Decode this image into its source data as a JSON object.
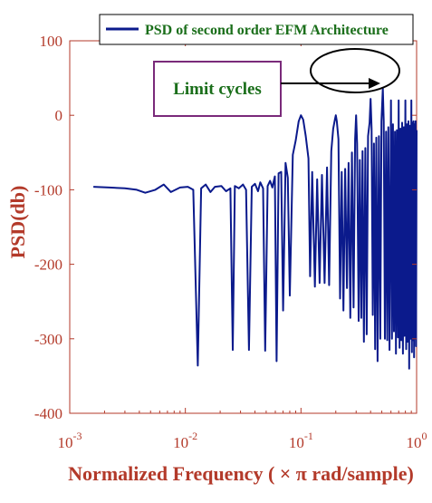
{
  "chart_data": {
    "type": "line",
    "xscale": "log",
    "xlabel": "Normalized Frequency ( × π rad/sample)",
    "ylabel": "PSD(db)",
    "xlim": [
      0.001,
      1
    ],
    "ylim": [
      -400,
      100
    ],
    "x_tick_labels": [
      {
        "base": "10",
        "exp": "-3"
      },
      {
        "base": "10",
        "exp": "-2"
      },
      {
        "base": "10",
        "exp": "-1"
      },
      {
        "base": "10",
        "exp": "0"
      }
    ],
    "y_ticks": [
      100,
      0,
      -100,
      -200,
      -300,
      -400
    ],
    "y_tick_labels": [
      "100",
      "0",
      "-100",
      "-200",
      "-300",
      "-400"
    ],
    "grid": false,
    "legend_position": "top",
    "series": [
      {
        "name": "PSD of second  order EFM Architecture",
        "color": "#0b1a8c",
        "points": [
          [
            0.0016,
            -96
          ],
          [
            0.0022,
            -97
          ],
          [
            0.003,
            -98
          ],
          [
            0.0038,
            -100
          ],
          [
            0.0045,
            -104
          ],
          [
            0.0055,
            -100
          ],
          [
            0.0065,
            -93
          ],
          [
            0.0075,
            -103
          ],
          [
            0.009,
            -97
          ],
          [
            0.0105,
            -96
          ],
          [
            0.0117,
            -100
          ],
          [
            0.0128,
            -336
          ],
          [
            0.0137,
            -98
          ],
          [
            0.015,
            -93
          ],
          [
            0.0165,
            -103
          ],
          [
            0.018,
            -96
          ],
          [
            0.0205,
            -95
          ],
          [
            0.0225,
            -102
          ],
          [
            0.0245,
            -98
          ],
          [
            0.0257,
            -315
          ],
          [
            0.0268,
            -95
          ],
          [
            0.029,
            -98
          ],
          [
            0.0315,
            -93
          ],
          [
            0.0335,
            -100
          ],
          [
            0.0355,
            -315
          ],
          [
            0.0375,
            -96
          ],
          [
            0.04,
            -92
          ],
          [
            0.0425,
            -102
          ],
          [
            0.0445,
            -90
          ],
          [
            0.047,
            -98
          ],
          [
            0.049,
            -316
          ],
          [
            0.0515,
            -95
          ],
          [
            0.054,
            -88
          ],
          [
            0.0565,
            -97
          ],
          [
            0.0595,
            -82
          ],
          [
            0.0615,
            -330
          ],
          [
            0.064,
            -78
          ],
          [
            0.0675,
            -76
          ],
          [
            0.07,
            -262
          ],
          [
            0.0735,
            -64
          ],
          [
            0.077,
            -84
          ],
          [
            0.08,
            -242
          ],
          [
            0.085,
            -53
          ],
          [
            0.09,
            -34
          ],
          [
            0.0955,
            -8
          ],
          [
            0.1,
            0
          ],
          [
            0.1045,
            -6
          ],
          [
            0.11,
            -28
          ],
          [
            0.116,
            -58
          ],
          [
            0.12,
            -216
          ],
          [
            0.125,
            -76
          ],
          [
            0.132,
            -230
          ],
          [
            0.138,
            -86
          ],
          [
            0.145,
            -225
          ],
          [
            0.152,
            -80
          ],
          [
            0.16,
            -225
          ],
          [
            0.168,
            -70
          ],
          [
            0.175,
            -228
          ],
          [
            0.183,
            -48
          ],
          [
            0.19,
            -18
          ],
          [
            0.197,
            -5
          ],
          [
            0.2,
            0
          ],
          [
            0.204,
            -8
          ],
          [
            0.211,
            -32
          ],
          [
            0.218,
            -246
          ],
          [
            0.225,
            -76
          ],
          [
            0.233,
            -262
          ],
          [
            0.241,
            -72
          ],
          [
            0.25,
            -232
          ],
          [
            0.258,
            -64
          ],
          [
            0.267,
            -272
          ],
          [
            0.276,
            -50
          ],
          [
            0.285,
            -258
          ],
          [
            0.294,
            -32
          ],
          [
            0.3,
            0
          ],
          [
            0.306,
            -38
          ],
          [
            0.315,
            -276
          ],
          [
            0.323,
            -60
          ],
          [
            0.332,
            -272
          ],
          [
            0.341,
            -48
          ],
          [
            0.35,
            -304
          ],
          [
            0.36,
            -44
          ],
          [
            0.37,
            -294
          ],
          [
            0.38,
            -28
          ],
          [
            0.392,
            -10
          ],
          [
            0.4,
            22
          ],
          [
            0.408,
            -18
          ],
          [
            0.418,
            -268
          ],
          [
            0.428,
            -38
          ],
          [
            0.438,
            -314
          ],
          [
            0.448,
            -30
          ],
          [
            0.46,
            -330
          ],
          [
            0.472,
            -28
          ],
          [
            0.485,
            -300
          ],
          [
            0.497,
            -8
          ],
          [
            0.51,
            36
          ],
          [
            0.52,
            -8
          ],
          [
            0.532,
            -300
          ],
          [
            0.545,
            -22
          ],
          [
            0.557,
            -302
          ],
          [
            0.57,
            -16
          ],
          [
            0.583,
            -315
          ],
          [
            0.6,
            20
          ],
          [
            0.612,
            -300
          ],
          [
            0.625,
            -12
          ],
          [
            0.637,
            -290
          ],
          [
            0.65,
            -22
          ],
          [
            0.663,
            -320
          ],
          [
            0.675,
            -20
          ],
          [
            0.69,
            -298
          ],
          [
            0.7,
            20
          ],
          [
            0.712,
            -312
          ],
          [
            0.725,
            -18
          ],
          [
            0.737,
            -302
          ],
          [
            0.75,
            -10
          ],
          [
            0.762,
            -320
          ],
          [
            0.775,
            -16
          ],
          [
            0.787,
            -296
          ],
          [
            0.8,
            20
          ],
          [
            0.812,
            -314
          ],
          [
            0.825,
            -12
          ],
          [
            0.837,
            -304
          ],
          [
            0.85,
            -8
          ],
          [
            0.862,
            -340
          ],
          [
            0.875,
            -14
          ],
          [
            0.887,
            -300
          ],
          [
            0.9,
            20
          ],
          [
            0.91,
            -318
          ],
          [
            0.92,
            -10
          ],
          [
            0.93,
            -302
          ],
          [
            0.94,
            -8
          ],
          [
            0.95,
            -325
          ],
          [
            0.96,
            -12
          ],
          [
            0.97,
            -300
          ],
          [
            0.98,
            -8
          ],
          [
            0.99,
            -310
          ],
          [
            1.0,
            -20
          ]
        ]
      }
    ],
    "annotations": [
      {
        "text": "Limit cycles",
        "target_label": "limit-cycles-ellipse"
      }
    ]
  },
  "colors": {
    "axis": "#b33a2a",
    "series": "#0b1a8c",
    "legend_text": "#1a6e1a",
    "annotation_box": "#7a2a7a",
    "annotation_text": "#1a6e1a"
  }
}
